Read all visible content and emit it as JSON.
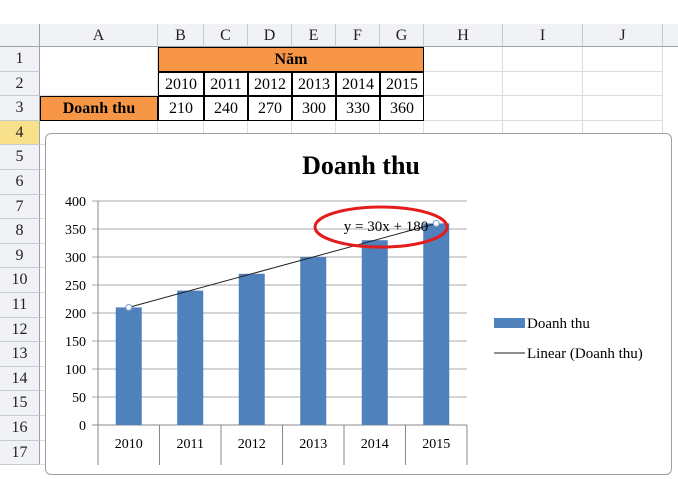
{
  "columns": [
    "A",
    "B",
    "C",
    "D",
    "E",
    "F",
    "G",
    "H",
    "I",
    "J"
  ],
  "rows": [
    "1",
    "2",
    "3",
    "4",
    "5",
    "6",
    "7",
    "8",
    "9",
    "10",
    "11",
    "12",
    "13",
    "14",
    "15",
    "16",
    "17"
  ],
  "cells": {
    "B1": "Năm",
    "A3": "Doanh thu",
    "years": [
      "2010",
      "2011",
      "2012",
      "2013",
      "2014",
      "2015"
    ],
    "values": [
      "210",
      "240",
      "270",
      "300",
      "330",
      "360"
    ]
  },
  "colors": {
    "header_fill": "#f79646",
    "bar": "#4f81bd",
    "highlight": "#e31c1c"
  },
  "chart_data": {
    "type": "bar",
    "title": "Doanh thu",
    "categories": [
      "2010",
      "2011",
      "2012",
      "2013",
      "2014",
      "2015"
    ],
    "series": [
      {
        "name": "Doanh thu",
        "values": [
          210,
          240,
          270,
          300,
          330,
          360
        ]
      }
    ],
    "trendline": {
      "name": "Linear (Doanh thu)",
      "equation": "y = 30x + 180",
      "slope": 30,
      "intercept": 180
    },
    "ylim": [
      0,
      400
    ],
    "yticks": [
      "0",
      "50",
      "100",
      "150",
      "200",
      "250",
      "300",
      "350",
      "400"
    ],
    "grid": true,
    "legend": "right"
  }
}
